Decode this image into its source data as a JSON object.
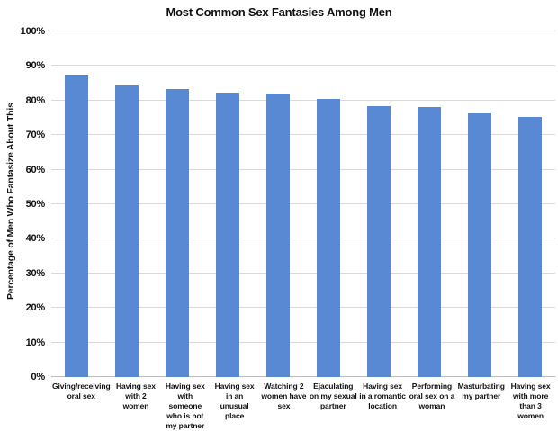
{
  "chart_data": {
    "type": "bar",
    "title": "Most Common Sex Fantasies Among Men",
    "xlabel": "",
    "ylabel": "Percentage of Men Who Fantasize About This",
    "ylim": [
      0,
      100
    ],
    "y_tick_step": 10,
    "y_tick_suffix": "%",
    "grid": "horizontal",
    "legend": "none",
    "bar_color": "#5989d2",
    "gridline_color": "#d9d9d9",
    "categories": [
      "Giving/receiving oral sex",
      "Having sex with 2 women",
      "Having sex with someone who is not my partner",
      "Having sex in an unusual place",
      "Watching 2 women have sex",
      "Ejaculating on my sexual partner",
      "Having sex in a romantic location",
      "Performing oral sex on a woman",
      "Masturbating my partner",
      "Having sex with more than 3 women"
    ],
    "values": [
      87.6,
      84.5,
      83.4,
      82.3,
      82.1,
      80.4,
      78.5,
      78.1,
      76.4,
      75.3
    ]
  }
}
